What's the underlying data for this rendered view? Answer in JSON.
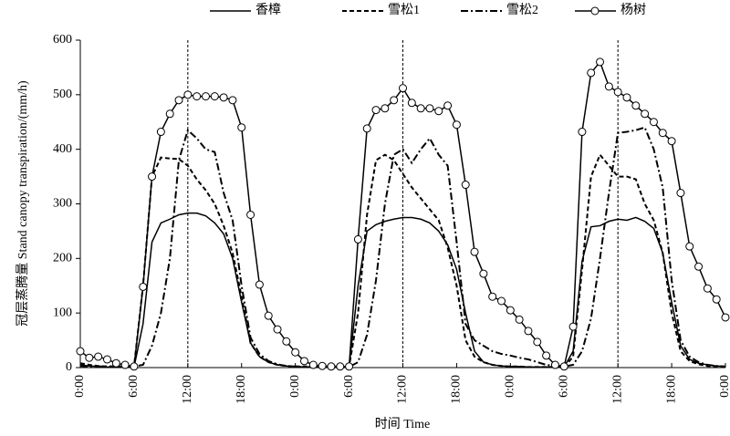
{
  "chart_data": {
    "type": "line",
    "xlabel": "时间 Time",
    "ylabel": "冠层蒸腾量 Stand canopy transpiration/(mm/h)",
    "x": [
      0,
      1,
      2,
      3,
      4,
      5,
      6,
      7,
      8,
      9,
      10,
      11,
      12,
      13,
      14,
      15,
      16,
      17,
      18,
      19,
      20,
      21,
      22,
      23,
      24,
      25,
      26,
      27,
      28,
      29,
      30,
      31,
      32,
      33,
      34,
      35,
      36,
      37,
      38,
      39,
      40,
      41,
      42,
      43,
      44,
      45,
      46,
      47,
      48,
      49,
      50,
      51,
      52,
      53,
      54,
      55,
      56,
      57,
      58,
      59,
      60,
      61,
      62,
      63,
      64,
      65,
      66,
      67,
      68,
      69,
      70,
      71,
      72
    ],
    "series": [
      {
        "name": "香樟",
        "color": "#000000",
        "dash": "solid",
        "marker": "none",
        "values": [
          5,
          3,
          2,
          1,
          1,
          1,
          1,
          80,
          230,
          265,
          272,
          280,
          283,
          283,
          278,
          265,
          245,
          200,
          120,
          45,
          20,
          10,
          5,
          3,
          2,
          1,
          1,
          1,
          1,
          1,
          1,
          150,
          250,
          262,
          268,
          272,
          275,
          275,
          272,
          265,
          250,
          225,
          180,
          100,
          30,
          10,
          5,
          3,
          2,
          2,
          1,
          1,
          1,
          1,
          1,
          30,
          195,
          258,
          260,
          268,
          272,
          270,
          275,
          268,
          255,
          210,
          120,
          40,
          15,
          8,
          5,
          3,
          2
        ]
      },
      {
        "name": "雪松1",
        "color": "#000000",
        "dash": "dashed",
        "marker": "none",
        "values": [
          8,
          5,
          3,
          2,
          2,
          2,
          2,
          150,
          350,
          385,
          383,
          382,
          370,
          345,
          325,
          300,
          260,
          210,
          130,
          45,
          20,
          10,
          5,
          3,
          2,
          2,
          2,
          2,
          2,
          2,
          2,
          100,
          280,
          380,
          390,
          380,
          355,
          330,
          310,
          290,
          270,
          220,
          150,
          50,
          20,
          10,
          5,
          3,
          2,
          2,
          1,
          1,
          1,
          1,
          1,
          20,
          180,
          350,
          390,
          370,
          350,
          350,
          345,
          300,
          270,
          210,
          100,
          30,
          12,
          6,
          3,
          2,
          1
        ]
      },
      {
        "name": "雪松2",
        "color": "#000000",
        "dash": "dashdot",
        "marker": "none",
        "values": [
          3,
          2,
          2,
          2,
          2,
          2,
          2,
          5,
          40,
          100,
          200,
          380,
          435,
          420,
          400,
          395,
          320,
          270,
          150,
          55,
          25,
          12,
          6,
          3,
          2,
          1,
          1,
          1,
          1,
          1,
          1,
          10,
          60,
          160,
          300,
          390,
          400,
          375,
          400,
          420,
          390,
          370,
          230,
          80,
          50,
          40,
          30,
          25,
          22,
          18,
          15,
          10,
          5,
          3,
          2,
          5,
          30,
          90,
          200,
          320,
          430,
          432,
          435,
          440,
          400,
          330,
          160,
          50,
          20,
          10,
          5,
          3,
          2
        ]
      },
      {
        "name": "杨树",
        "color": "#000000",
        "dash": "solid",
        "marker": "circle",
        "values": [
          30,
          18,
          20,
          15,
          8,
          5,
          2,
          148,
          350,
          432,
          465,
          490,
          500,
          497,
          497,
          497,
          495,
          490,
          440,
          280,
          152,
          95,
          70,
          48,
          28,
          12,
          5,
          3,
          2,
          2,
          2,
          235,
          438,
          472,
          475,
          490,
          512,
          485,
          475,
          475,
          470,
          480,
          445,
          335,
          212,
          172,
          130,
          122,
          105,
          88,
          67,
          47,
          22,
          5,
          2,
          75,
          432,
          540,
          560,
          515,
          505,
          495,
          480,
          465,
          450,
          430,
          415,
          320,
          222,
          185,
          145,
          125,
          92
        ]
      }
    ],
    "xlim": [
      0,
      72
    ],
    "xticks": [
      {
        "value": 0,
        "label": "0:00"
      },
      {
        "value": 6,
        "label": "6:00"
      },
      {
        "value": 12,
        "label": "12:00"
      },
      {
        "value": 18,
        "label": "18:00"
      },
      {
        "value": 24,
        "label": "0:00"
      },
      {
        "value": 30,
        "label": "6:00"
      },
      {
        "value": 36,
        "label": "12:00"
      },
      {
        "value": 42,
        "label": "18:00"
      },
      {
        "value": 48,
        "label": "0:00"
      },
      {
        "value": 54,
        "label": "6:00"
      },
      {
        "value": 60,
        "label": "12:00"
      },
      {
        "value": 66,
        "label": "18:00"
      },
      {
        "value": 72,
        "label": "0:00"
      }
    ],
    "ylim": [
      0,
      600
    ],
    "yticks": [
      0,
      100,
      200,
      300,
      400,
      500,
      600
    ],
    "vlines": [
      12,
      36,
      60
    ],
    "legend": "top"
  }
}
